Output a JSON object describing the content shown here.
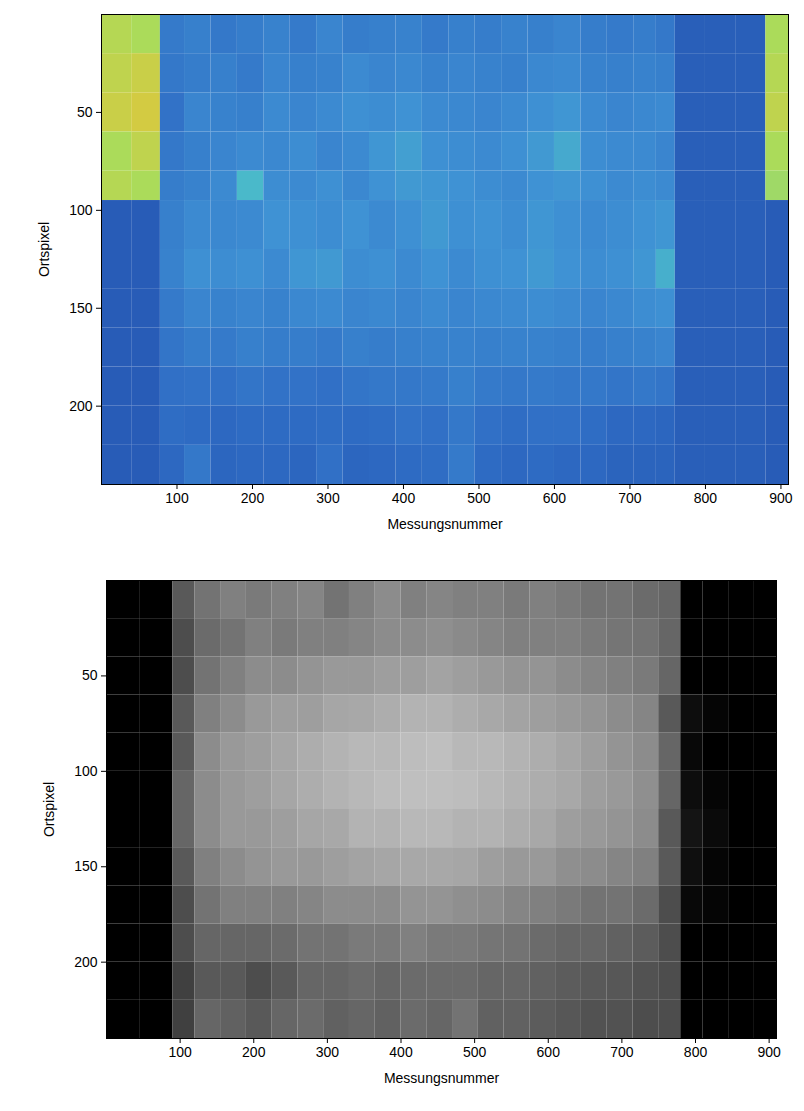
{
  "chart_data": [
    {
      "type": "heatmap",
      "color": "jet",
      "xlabel": "Messungsnummer",
      "ylabel": "Ortspixel",
      "xlim": [
        0,
        910
      ],
      "ylim": [
        240,
        0
      ],
      "xticks": [
        100,
        200,
        300,
        400,
        500,
        600,
        700,
        800,
        900
      ],
      "yticks": [
        50,
        100,
        150,
        200
      ],
      "value_range": [
        0,
        1
      ],
      "x_edges": [
        0,
        40,
        78,
        110,
        145,
        180,
        215,
        250,
        285,
        320,
        355,
        390,
        425,
        460,
        495,
        530,
        565,
        600,
        635,
        670,
        705,
        735,
        760,
        800,
        840,
        880,
        910
      ],
      "y_edges": [
        0,
        20,
        40,
        60,
        80,
        95,
        120,
        140,
        160,
        180,
        200,
        220,
        240
      ],
      "cells": [
        [
          0.74,
          0.76,
          0.78,
          0.72,
          0.74,
          0.22,
          0.22,
          0.22,
          0.22,
          0.22,
          0.22,
          0.22
        ],
        [
          0.72,
          0.78,
          0.8,
          0.76,
          0.72,
          0.22,
          0.22,
          0.22,
          0.22,
          0.22,
          0.22,
          0.22
        ],
        [
          0.34,
          0.33,
          0.31,
          0.33,
          0.35,
          0.36,
          0.37,
          0.34,
          0.32,
          0.3,
          0.29,
          0.27
        ],
        [
          0.36,
          0.35,
          0.38,
          0.36,
          0.37,
          0.4,
          0.42,
          0.38,
          0.35,
          0.31,
          0.28,
          0.33
        ],
        [
          0.33,
          0.36,
          0.37,
          0.38,
          0.4,
          0.39,
          0.41,
          0.37,
          0.34,
          0.3,
          0.27,
          0.26
        ],
        [
          0.35,
          0.34,
          0.36,
          0.4,
          0.55,
          0.4,
          0.42,
          0.38,
          0.36,
          0.32,
          0.28,
          0.27
        ],
        [
          0.37,
          0.38,
          0.4,
          0.39,
          0.41,
          0.43,
          0.4,
          0.37,
          0.35,
          0.31,
          0.28,
          0.27
        ],
        [
          0.34,
          0.36,
          0.38,
          0.41,
          0.4,
          0.42,
          0.44,
          0.39,
          0.35,
          0.31,
          0.28,
          0.26
        ],
        [
          0.38,
          0.37,
          0.4,
          0.38,
          0.42,
          0.41,
          0.45,
          0.4,
          0.34,
          0.3,
          0.29,
          0.3
        ],
        [
          0.35,
          0.4,
          0.42,
          0.4,
          0.39,
          0.43,
          0.41,
          0.38,
          0.36,
          0.32,
          0.28,
          0.26
        ],
        [
          0.36,
          0.38,
          0.41,
          0.44,
          0.43,
          0.4,
          0.42,
          0.39,
          0.35,
          0.33,
          0.29,
          0.27
        ],
        [
          0.37,
          0.39,
          0.43,
          0.47,
          0.45,
          0.42,
          0.4,
          0.38,
          0.36,
          0.33,
          0.31,
          0.28
        ],
        [
          0.34,
          0.37,
          0.4,
          0.42,
          0.44,
          0.45,
          0.43,
          0.4,
          0.37,
          0.34,
          0.3,
          0.29
        ],
        [
          0.36,
          0.38,
          0.39,
          0.41,
          0.43,
          0.42,
          0.4,
          0.38,
          0.37,
          0.36,
          0.33,
          0.34
        ],
        [
          0.35,
          0.37,
          0.38,
          0.4,
          0.41,
          0.43,
          0.42,
          0.39,
          0.36,
          0.34,
          0.3,
          0.28
        ],
        [
          0.37,
          0.36,
          0.4,
          0.42,
          0.4,
          0.41,
          0.43,
          0.4,
          0.37,
          0.33,
          0.29,
          0.27
        ],
        [
          0.36,
          0.39,
          0.42,
          0.45,
          0.43,
          0.44,
          0.45,
          0.41,
          0.37,
          0.34,
          0.3,
          0.28
        ],
        [
          0.38,
          0.4,
          0.44,
          0.5,
          0.44,
          0.42,
          0.43,
          0.4,
          0.36,
          0.33,
          0.3,
          0.27
        ],
        [
          0.35,
          0.37,
          0.4,
          0.41,
          0.42,
          0.4,
          0.41,
          0.38,
          0.35,
          0.33,
          0.29,
          0.27
        ],
        [
          0.34,
          0.36,
          0.38,
          0.4,
          0.4,
          0.41,
          0.42,
          0.39,
          0.36,
          0.32,
          0.27,
          0.25
        ],
        [
          0.35,
          0.37,
          0.39,
          0.4,
          0.41,
          0.43,
          0.44,
          0.41,
          0.37,
          0.33,
          0.27,
          0.25
        ],
        [
          0.33,
          0.36,
          0.4,
          0.38,
          0.4,
          0.44,
          0.52,
          0.42,
          0.38,
          0.32,
          0.26,
          0.25
        ],
        [
          0.23,
          0.23,
          0.23,
          0.23,
          0.23,
          0.23,
          0.23,
          0.23,
          0.23,
          0.23,
          0.23,
          0.23
        ],
        [
          0.23,
          0.23,
          0.23,
          0.23,
          0.23,
          0.23,
          0.23,
          0.23,
          0.23,
          0.23,
          0.23,
          0.23
        ],
        [
          0.23,
          0.23,
          0.23,
          0.23,
          0.23,
          0.23,
          0.23,
          0.23,
          0.23,
          0.23,
          0.23,
          0.23
        ],
        [
          0.72,
          0.74,
          0.76,
          0.72,
          0.7,
          0.22,
          0.22,
          0.22,
          0.22,
          0.22,
          0.22,
          0.22
        ]
      ]
    },
    {
      "type": "heatmap",
      "color": "gray",
      "xlabel": "Messungsnummer",
      "ylabel": "Ortspixel",
      "xlim": [
        0,
        910
      ],
      "ylim": [
        240,
        0
      ],
      "xticks": [
        100,
        200,
        300,
        400,
        500,
        600,
        700,
        800,
        900
      ],
      "yticks": [
        50,
        100,
        150,
        200
      ],
      "value_range": [
        0,
        1
      ],
      "x_edges": [
        0,
        45,
        90,
        120,
        155,
        190,
        225,
        260,
        295,
        330,
        365,
        400,
        435,
        470,
        505,
        540,
        575,
        610,
        645,
        680,
        715,
        750,
        780,
        810,
        845,
        880,
        910
      ],
      "y_edges": [
        0,
        20,
        40,
        60,
        80,
        100,
        120,
        140,
        160,
        180,
        200,
        220,
        240
      ],
      "cells": [
        [
          0,
          0,
          0,
          0,
          0,
          0,
          0,
          0,
          0,
          0,
          0,
          0
        ],
        [
          0,
          0,
          0,
          0,
          0,
          0,
          0,
          0,
          0,
          0,
          0,
          0
        ],
        [
          0.35,
          0.3,
          0.3,
          0.35,
          0.35,
          0.4,
          0.4,
          0.35,
          0.3,
          0.3,
          0.25,
          0.25
        ],
        [
          0.45,
          0.42,
          0.45,
          0.5,
          0.55,
          0.55,
          0.55,
          0.5,
          0.45,
          0.4,
          0.35,
          0.4
        ],
        [
          0.5,
          0.45,
          0.5,
          0.55,
          0.6,
          0.6,
          0.6,
          0.55,
          0.5,
          0.4,
          0.35,
          0.38
        ],
        [
          0.48,
          0.5,
          0.55,
          0.6,
          0.62,
          0.62,
          0.6,
          0.58,
          0.5,
          0.4,
          0.3,
          0.35
        ],
        [
          0.5,
          0.48,
          0.55,
          0.62,
          0.65,
          0.65,
          0.62,
          0.6,
          0.5,
          0.42,
          0.35,
          0.4
        ],
        [
          0.52,
          0.5,
          0.58,
          0.62,
          0.68,
          0.68,
          0.65,
          0.6,
          0.52,
          0.45,
          0.4,
          0.42
        ],
        [
          0.45,
          0.5,
          0.6,
          0.65,
          0.7,
          0.7,
          0.66,
          0.62,
          0.55,
          0.45,
          0.4,
          0.38
        ],
        [
          0.5,
          0.52,
          0.6,
          0.66,
          0.72,
          0.72,
          0.7,
          0.64,
          0.55,
          0.48,
          0.42,
          0.4
        ],
        [
          0.55,
          0.55,
          0.62,
          0.68,
          0.72,
          0.74,
          0.7,
          0.65,
          0.55,
          0.48,
          0.4,
          0.38
        ],
        [
          0.5,
          0.55,
          0.62,
          0.7,
          0.74,
          0.75,
          0.72,
          0.66,
          0.58,
          0.5,
          0.42,
          0.42
        ],
        [
          0.52,
          0.56,
          0.64,
          0.7,
          0.75,
          0.75,
          0.72,
          0.66,
          0.58,
          0.48,
          0.42,
          0.4
        ],
        [
          0.5,
          0.54,
          0.62,
          0.68,
          0.72,
          0.74,
          0.7,
          0.65,
          0.56,
          0.48,
          0.42,
          0.45
        ],
        [
          0.5,
          0.52,
          0.6,
          0.66,
          0.72,
          0.72,
          0.7,
          0.62,
          0.55,
          0.46,
          0.4,
          0.38
        ],
        [
          0.48,
          0.5,
          0.58,
          0.64,
          0.7,
          0.7,
          0.68,
          0.6,
          0.52,
          0.45,
          0.4,
          0.38
        ],
        [
          0.5,
          0.5,
          0.58,
          0.62,
          0.68,
          0.68,
          0.66,
          0.6,
          0.5,
          0.42,
          0.38,
          0.36
        ],
        [
          0.48,
          0.5,
          0.55,
          0.6,
          0.65,
          0.66,
          0.62,
          0.56,
          0.48,
          0.4,
          0.36,
          0.34
        ],
        [
          0.45,
          0.48,
          0.52,
          0.58,
          0.62,
          0.62,
          0.6,
          0.55,
          0.45,
          0.4,
          0.35,
          0.32
        ],
        [
          0.45,
          0.46,
          0.5,
          0.55,
          0.58,
          0.6,
          0.58,
          0.52,
          0.45,
          0.38,
          0.34,
          0.32
        ],
        [
          0.42,
          0.45,
          0.48,
          0.52,
          0.55,
          0.56,
          0.55,
          0.5,
          0.42,
          0.36,
          0.32,
          0.3
        ],
        [
          0.4,
          0.4,
          0.4,
          0.35,
          0.4,
          0.4,
          0.35,
          0.35,
          0.3,
          0.3,
          0.3,
          0.3
        ],
        [
          0,
          0,
          0,
          0.05,
          0.03,
          0.05,
          0.08,
          0.06,
          0.03,
          0,
          0,
          0
        ],
        [
          0,
          0,
          0,
          0.02,
          0,
          0.02,
          0.04,
          0.02,
          0.02,
          0,
          0,
          0
        ],
        [
          0,
          0,
          0,
          0,
          0,
          0,
          0,
          0,
          0,
          0,
          0,
          0
        ],
        [
          0,
          0,
          0,
          0,
          0,
          0,
          0,
          0,
          0,
          0,
          0,
          0
        ]
      ]
    }
  ]
}
